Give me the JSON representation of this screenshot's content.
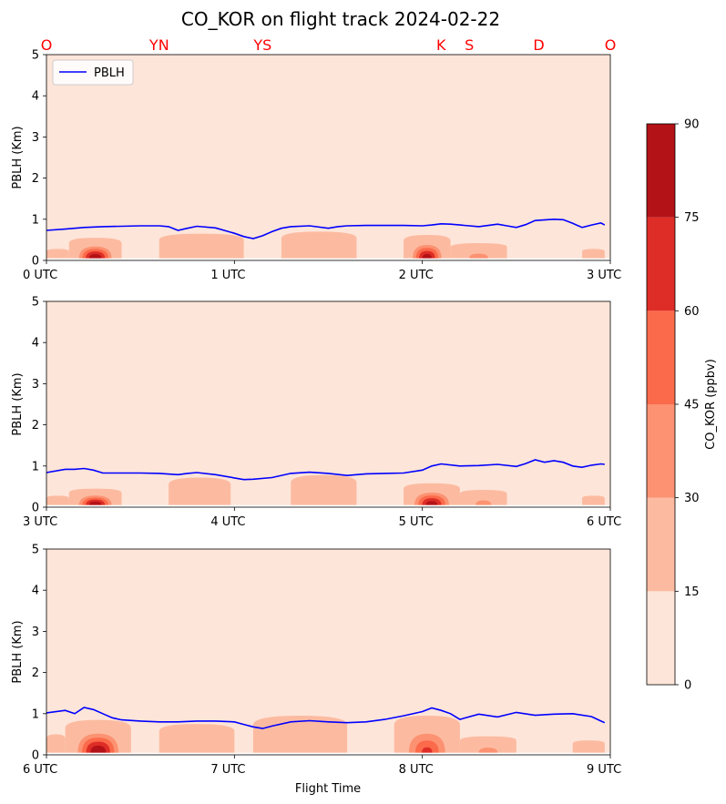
{
  "chart_data": {
    "type": "contour",
    "title": "CO_KOR on flight track 2024-02-22",
    "xlabel": "Flight Time",
    "ylabel": "PBLH (Km)",
    "legend": {
      "entries": [
        "PBLH"
      ],
      "placement": "top-left",
      "color": "#0000ff"
    },
    "colorbar": {
      "label": "CO_KOR (ppbv)",
      "levels": [
        0,
        15,
        30,
        45,
        60,
        75,
        90
      ],
      "colors": [
        "#fee5d9",
        "#fcbba1",
        "#fc9272",
        "#fb6a4a",
        "#de2d26",
        "#b31217",
        "#67000d"
      ]
    },
    "site_labels": [
      {
        "label": "O",
        "x": 0.0
      },
      {
        "label": "YN",
        "x": 0.6
      },
      {
        "label": "YS",
        "x": 1.15
      },
      {
        "label": "K",
        "x": 2.1
      },
      {
        "label": "S",
        "x": 2.25
      },
      {
        "label": "D",
        "x": 2.62
      },
      {
        "label": "O",
        "x": 3.0
      }
    ],
    "panels": [
      {
        "xlim": [
          0,
          3
        ],
        "xticks": [
          "0 UTC",
          "1 UTC",
          "2 UTC",
          "3 UTC"
        ],
        "ylim": [
          0,
          5
        ],
        "yticks": [
          "0",
          "1",
          "2",
          "3",
          "4",
          "5"
        ],
        "pblh": {
          "x": [
            0.0,
            0.1,
            0.2,
            0.3,
            0.4,
            0.5,
            0.6,
            0.65,
            0.7,
            0.75,
            0.8,
            0.9,
            1.0,
            1.05,
            1.1,
            1.15,
            1.2,
            1.25,
            1.3,
            1.4,
            1.5,
            1.55,
            1.6,
            1.7,
            1.8,
            1.9,
            2.0,
            2.05,
            2.1,
            2.15,
            2.2,
            2.3,
            2.4,
            2.45,
            2.5,
            2.55,
            2.6,
            2.7,
            2.75,
            2.8,
            2.85,
            2.9,
            2.95,
            2.97
          ],
          "y": [
            0.73,
            0.76,
            0.8,
            0.82,
            0.83,
            0.84,
            0.84,
            0.82,
            0.73,
            0.78,
            0.83,
            0.79,
            0.66,
            0.58,
            0.53,
            0.6,
            0.7,
            0.78,
            0.82,
            0.84,
            0.78,
            0.82,
            0.84,
            0.85,
            0.85,
            0.85,
            0.84,
            0.86,
            0.89,
            0.88,
            0.86,
            0.82,
            0.88,
            0.84,
            0.8,
            0.87,
            0.97,
            1.0,
            0.99,
            0.9,
            0.8,
            0.86,
            0.91,
            0.86
          ]
        },
        "co_blobs": [
          {
            "x0": 0.0,
            "x1": 0.12,
            "top": 0.28,
            "peak": 18
          },
          {
            "x0": 0.12,
            "x1": 0.4,
            "top": 0.55,
            "peak": 90
          },
          {
            "x0": 0.6,
            "x1": 1.05,
            "top": 0.65,
            "peak": 25
          },
          {
            "x0": 1.25,
            "x1": 1.65,
            "top": 0.7,
            "peak": 25
          },
          {
            "x0": 1.9,
            "x1": 2.15,
            "top": 0.62,
            "peak": 85
          },
          {
            "x0": 2.15,
            "x1": 2.45,
            "top": 0.42,
            "peak": 30
          },
          {
            "x0": 2.85,
            "x1": 2.97,
            "top": 0.28,
            "peak": 18
          }
        ]
      },
      {
        "xlim": [
          3,
          6
        ],
        "xticks": [
          "3 UTC",
          "4 UTC",
          "5 UTC",
          "6 UTC"
        ],
        "ylim": [
          0,
          5
        ],
        "yticks": [
          "0",
          "1",
          "2",
          "3",
          "4",
          "5"
        ],
        "pblh": {
          "x": [
            3.0,
            3.1,
            3.15,
            3.2,
            3.25,
            3.3,
            3.4,
            3.5,
            3.6,
            3.7,
            3.75,
            3.8,
            3.9,
            4.0,
            4.05,
            4.1,
            4.2,
            4.3,
            4.4,
            4.5,
            4.6,
            4.7,
            4.8,
            4.9,
            5.0,
            5.05,
            5.1,
            5.2,
            5.3,
            5.4,
            5.5,
            5.55,
            5.6,
            5.65,
            5.7,
            5.75,
            5.8,
            5.85,
            5.9,
            5.95,
            5.97
          ],
          "y": [
            0.84,
            0.92,
            0.92,
            0.94,
            0.9,
            0.83,
            0.83,
            0.83,
            0.82,
            0.79,
            0.82,
            0.84,
            0.79,
            0.71,
            0.67,
            0.68,
            0.72,
            0.82,
            0.85,
            0.82,
            0.77,
            0.81,
            0.82,
            0.83,
            0.9,
            1.0,
            1.05,
            1.0,
            1.01,
            1.04,
            0.99,
            1.06,
            1.15,
            1.09,
            1.13,
            1.09,
            1.0,
            0.97,
            1.02,
            1.05,
            1.04
          ]
        },
        "co_blobs": [
          {
            "x0": 3.0,
            "x1": 3.12,
            "top": 0.28,
            "peak": 18
          },
          {
            "x0": 3.12,
            "x1": 3.4,
            "top": 0.45,
            "peak": 90
          },
          {
            "x0": 3.65,
            "x1": 3.98,
            "top": 0.72,
            "peak": 25
          },
          {
            "x0": 4.3,
            "x1": 4.65,
            "top": 0.78,
            "peak": 25
          },
          {
            "x0": 4.9,
            "x1": 5.2,
            "top": 0.58,
            "peak": 85
          },
          {
            "x0": 5.2,
            "x1": 5.45,
            "top": 0.42,
            "peak": 30
          },
          {
            "x0": 5.85,
            "x1": 5.97,
            "top": 0.28,
            "peak": 18
          }
        ]
      },
      {
        "xlim": [
          6,
          9
        ],
        "xticks": [
          "6 UTC",
          "7 UTC",
          "8 UTC",
          "9 UTC"
        ],
        "ylim": [
          0,
          5
        ],
        "yticks": [
          "0",
          "1",
          "2",
          "3",
          "4",
          "5"
        ],
        "pblh": {
          "x": [
            6.0,
            6.1,
            6.15,
            6.2,
            6.25,
            6.3,
            6.35,
            6.4,
            6.5,
            6.6,
            6.7,
            6.8,
            6.9,
            7.0,
            7.05,
            7.1,
            7.15,
            7.2,
            7.3,
            7.4,
            7.5,
            7.6,
            7.7,
            7.8,
            7.9,
            8.0,
            8.05,
            8.1,
            8.15,
            8.2,
            8.3,
            8.4,
            8.5,
            8.6,
            8.7,
            8.8,
            8.9,
            8.95,
            8.97
          ],
          "y": [
            1.02,
            1.08,
            1.0,
            1.15,
            1.1,
            1.0,
            0.9,
            0.85,
            0.82,
            0.8,
            0.8,
            0.82,
            0.82,
            0.8,
            0.74,
            0.68,
            0.64,
            0.7,
            0.8,
            0.83,
            0.8,
            0.78,
            0.8,
            0.86,
            0.95,
            1.05,
            1.14,
            1.08,
            1.0,
            0.86,
            0.99,
            0.92,
            1.03,
            0.96,
            0.99,
            1.0,
            0.93,
            0.82,
            0.78
          ]
        },
        "co_blobs": [
          {
            "x0": 6.0,
            "x1": 6.1,
            "top": 0.5,
            "peak": 18
          },
          {
            "x0": 6.1,
            "x1": 6.45,
            "top": 0.85,
            "peak": 90
          },
          {
            "x0": 6.6,
            "x1": 7.0,
            "top": 0.75,
            "peak": 25
          },
          {
            "x0": 7.1,
            "x1": 7.6,
            "top": 0.95,
            "peak": 25
          },
          {
            "x0": 7.85,
            "x1": 8.2,
            "top": 0.95,
            "peak": 60
          },
          {
            "x0": 8.2,
            "x1": 8.5,
            "top": 0.45,
            "peak": 30
          },
          {
            "x0": 8.8,
            "x1": 8.97,
            "top": 0.35,
            "peak": 18
          }
        ]
      }
    ]
  }
}
